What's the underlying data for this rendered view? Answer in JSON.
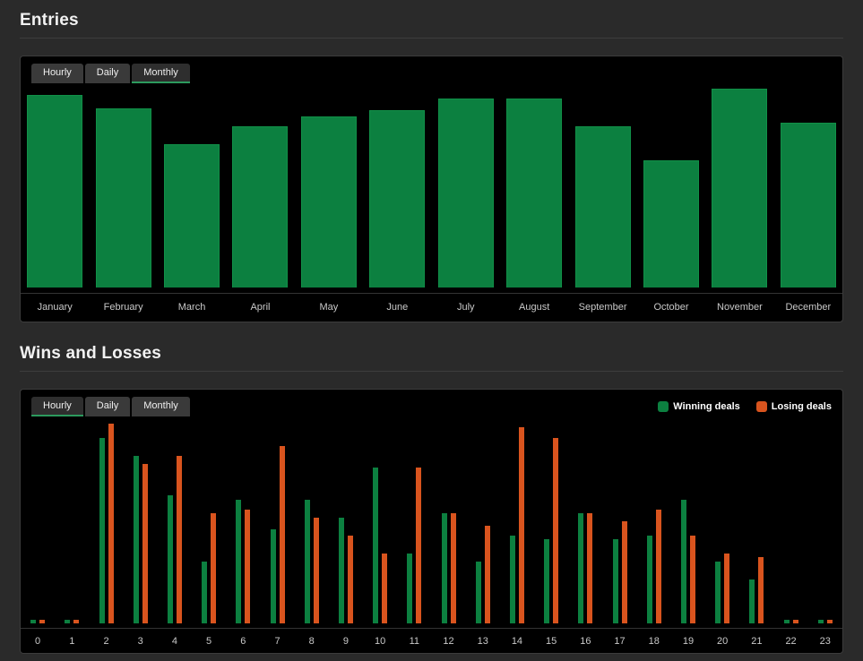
{
  "colors": {
    "page_bg": "#2a2a2a",
    "panel_bg": "#000000",
    "panel_border": "#3c3c3c",
    "divider": "#3d3d3d",
    "title_text": "#f2f2f2",
    "axis_line": "#333333",
    "axis_label_text": "#c9c9c9",
    "tab_bg": "#3a3a3a",
    "tab_active_bg": "#2e2e2e",
    "tab_active_underline": "#2c9a5d",
    "win_green": "#0c8040",
    "loss_orange": "#d9541e"
  },
  "sections": [
    {
      "title": "Entries",
      "tabs": [
        "Hourly",
        "Daily",
        "Monthly"
      ],
      "active_tab": "Monthly"
    },
    {
      "title": "Wins and Losses",
      "tabs": [
        "Hourly",
        "Daily",
        "Monthly"
      ],
      "active_tab": "Hourly",
      "legend": [
        "Winning deals",
        "Losing deals"
      ]
    }
  ],
  "chart_data": [
    {
      "type": "bar",
      "title": "Entries",
      "period_selected": "Monthly",
      "categories": [
        "January",
        "February",
        "March",
        "April",
        "May",
        "June",
        "July",
        "August",
        "September",
        "October",
        "November",
        "December"
      ],
      "values": [
        97,
        90,
        72,
        81,
        86,
        89,
        95,
        95,
        81,
        64,
        100,
        83
      ],
      "bar_color": "#0c8040",
      "xlabel": "",
      "ylabel": "",
      "ylim": [
        0,
        100
      ],
      "grid": false,
      "legend_position": "none"
    },
    {
      "type": "bar",
      "title": "Wins and Losses",
      "period_selected": "Hourly",
      "categories": [
        "0",
        "1",
        "2",
        "3",
        "4",
        "5",
        "6",
        "7",
        "8",
        "9",
        "10",
        "11",
        "12",
        "13",
        "14",
        "15",
        "16",
        "17",
        "18",
        "19",
        "20",
        "21",
        "22",
        "23"
      ],
      "series": [
        {
          "name": "Winning deals",
          "color": "#0c8040",
          "values": [
            2,
            2,
            93,
            84,
            64,
            31,
            62,
            47,
            62,
            53,
            78,
            35,
            55,
            31,
            44,
            42,
            55,
            42,
            44,
            62,
            31,
            22,
            2,
            2
          ]
        },
        {
          "name": "Losing deals",
          "color": "#d9541e",
          "values": [
            2,
            2,
            100,
            80,
            84,
            55,
            57,
            89,
            53,
            44,
            35,
            78,
            55,
            49,
            98,
            93,
            55,
            51,
            57,
            44,
            35,
            33,
            2,
            2
          ]
        }
      ],
      "xlabel": "",
      "ylabel": "",
      "ylim": [
        0,
        100
      ],
      "grid": false,
      "legend_position": "top-right"
    }
  ]
}
